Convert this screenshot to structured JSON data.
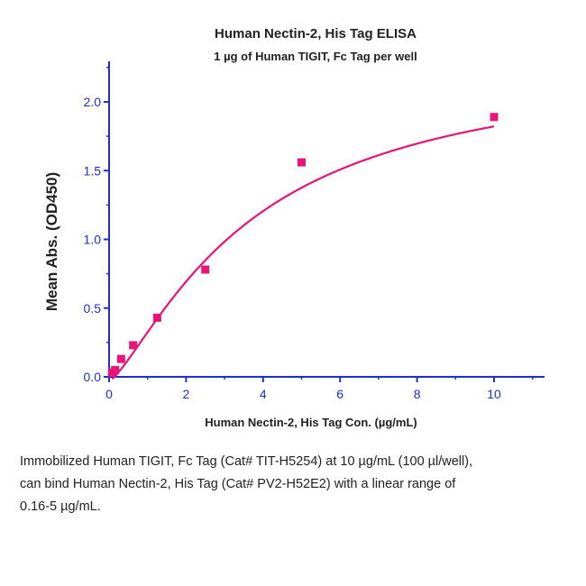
{
  "chart_data": {
    "type": "scatter",
    "title": "Human Nectin-2, His Tag ELISA",
    "subtitle": "1 µg of Human TIGIT, Fc Tag per well",
    "xlabel": "Human Nectin-2, His Tag Con. (µg/mL)",
    "ylabel": "Mean Abs. (OD450)",
    "xlim": [
      0,
      11.2
    ],
    "ylim": [
      0,
      2.3
    ],
    "x_ticks": [
      0,
      2,
      4,
      6,
      8,
      10
    ],
    "y_ticks": [
      0.0,
      0.5,
      1.0,
      1.5,
      2.0
    ],
    "x_tick_labels": [
      "0",
      "2",
      "4",
      "6",
      "8",
      "10"
    ],
    "y_tick_labels": [
      "0.0",
      "0.5",
      "1.0",
      "1.5",
      "2.0"
    ],
    "grid": false,
    "series": [
      {
        "x": [
          0.078,
          0.156,
          0.313,
          0.625,
          1.25,
          2.5,
          5,
          10
        ],
        "y": [
          0.03,
          0.05,
          0.13,
          0.23,
          0.43,
          0.78,
          1.56,
          1.89
        ],
        "color": "#e8147a"
      }
    ],
    "fit_curve": {
      "type": "4PL",
      "bottom": -0.03,
      "top": 2.32,
      "ec50": 3.7,
      "hill": 1.32,
      "color": "#e8147a"
    },
    "axis_color": "#1f2fd1",
    "tick_label_color": "#1f2fd1"
  },
  "caption": {
    "line1": "Immobilized Human TIGIT, Fc Tag (Cat# TIT-H5254) at 10 µg/mL (100 µl/well),",
    "line2": "can bind Human Nectin-2, His Tag (Cat# PV2-H52E2) with a linear range of",
    "line3": "0.16-5 µg/mL."
  }
}
